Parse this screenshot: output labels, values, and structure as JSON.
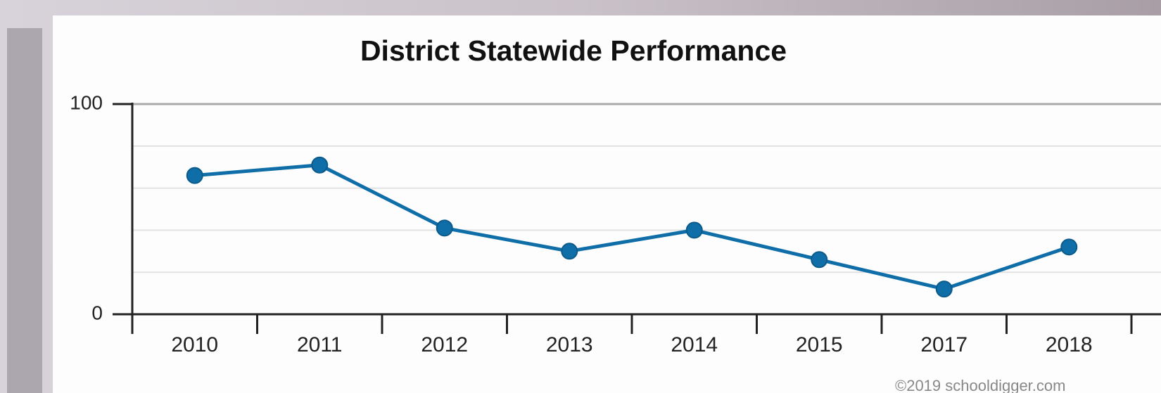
{
  "chart_data": {
    "type": "line",
    "title": "District Statewide Performance",
    "categories": [
      "2010",
      "2011",
      "2012",
      "2013",
      "2014",
      "2015",
      "2017",
      "2018"
    ],
    "series": [
      {
        "name": "District Statewide Performance",
        "color": "#0f6ea8",
        "values": [
          66,
          71,
          41,
          30,
          40,
          26,
          12,
          32
        ]
      }
    ],
    "ylim": [
      0,
      100
    ],
    "yticks": [
      0,
      100
    ],
    "minor_gridlines": [
      20,
      40,
      60,
      80
    ],
    "grid": true,
    "credit": "©2019 schooldigger.com"
  }
}
